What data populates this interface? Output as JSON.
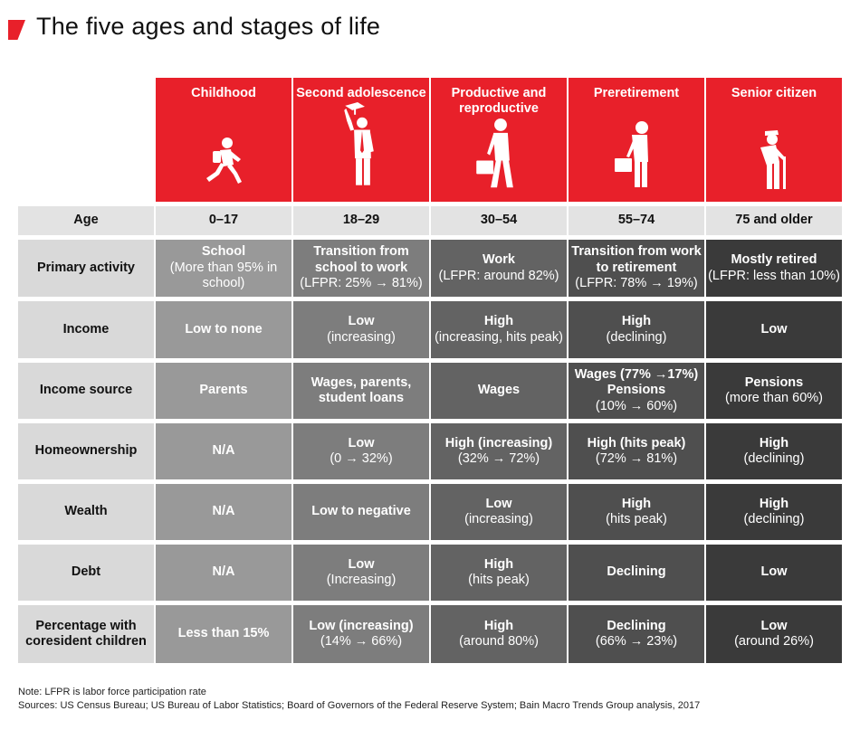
{
  "title": "The five ages and stages of life",
  "chart_data": {
    "type": "table",
    "columns": [
      {
        "label": "Childhood",
        "icon": "running-child-icon"
      },
      {
        "label": "Second adolescence",
        "icon": "graduate-icon"
      },
      {
        "label": "Productive and reproductive",
        "icon": "worker-briefcase-icon"
      },
      {
        "label": "Preretirement",
        "icon": "preretiree-briefcase-icon"
      },
      {
        "label": "Senior citizen",
        "icon": "senior-cane-icon"
      }
    ],
    "age_row": {
      "label": "Age",
      "values": [
        "0–17",
        "18–29",
        "30–54",
        "55–74",
        "75 and older"
      ]
    },
    "rows": [
      {
        "label": "Primary activity",
        "cells": [
          {
            "main": "School",
            "sub": "(More than 95% in school)"
          },
          {
            "main": "Transition from school to work",
            "sub": "(LFPR: 25% → 81%)"
          },
          {
            "main": "Work",
            "sub": "(LFPR: around 82%)"
          },
          {
            "main": "Transition from work to retirement",
            "sub": "(LFPR: 78% → 19%)"
          },
          {
            "main": "Mostly retired",
            "sub": "(LFPR: less than 10%)"
          }
        ]
      },
      {
        "label": "Income",
        "cells": [
          {
            "main": "Low to none",
            "sub": ""
          },
          {
            "main": "Low",
            "sub": "(increasing)"
          },
          {
            "main": "High",
            "sub": "(increasing, hits peak)"
          },
          {
            "main": "High",
            "sub": "(declining)"
          },
          {
            "main": "Low",
            "sub": ""
          }
        ]
      },
      {
        "label": "Income source",
        "cells": [
          {
            "main": "Parents",
            "sub": ""
          },
          {
            "main": "Wages, parents, student loans",
            "sub": ""
          },
          {
            "main": "Wages",
            "sub": ""
          },
          {
            "main": "Wages (77% →17%) Pensions",
            "sub": "(10% → 60%)"
          },
          {
            "main": "Pensions",
            "sub": "(more than 60%)"
          }
        ]
      },
      {
        "label": "Homeownership",
        "cells": [
          {
            "main": "N/A",
            "sub": ""
          },
          {
            "main": "Low",
            "sub": "(0 → 32%)"
          },
          {
            "main": "High (increasing)",
            "sub": "(32% → 72%)"
          },
          {
            "main": "High (hits peak)",
            "sub": "(72% → 81%)"
          },
          {
            "main": "High",
            "sub": "(declining)"
          }
        ]
      },
      {
        "label": "Wealth",
        "cells": [
          {
            "main": "N/A",
            "sub": ""
          },
          {
            "main": "Low to negative",
            "sub": ""
          },
          {
            "main": "Low",
            "sub": "(increasing)"
          },
          {
            "main": "High",
            "sub": "(hits peak)"
          },
          {
            "main": "High",
            "sub": "(declining)"
          }
        ]
      },
      {
        "label": "Debt",
        "cells": [
          {
            "main": "N/A",
            "sub": ""
          },
          {
            "main": "Low",
            "sub": "(Increasing)"
          },
          {
            "main": "High",
            "sub": "(hits peak)"
          },
          {
            "main": "Declining",
            "sub": ""
          },
          {
            "main": "Low",
            "sub": ""
          }
        ]
      },
      {
        "label": "Percentage with coresident children",
        "cells": [
          {
            "main": "Less than 15%",
            "sub": ""
          },
          {
            "main": "Low (increasing)",
            "sub": "(14% → 66%)"
          },
          {
            "main": "High",
            "sub": "(around 80%)"
          },
          {
            "main": "Declining",
            "sub": "(66% → 23%)"
          },
          {
            "main": "Low",
            "sub": "(around 26%)"
          }
        ]
      }
    ]
  },
  "note": "Note: LFPR is labor force participation rate",
  "sources": "Sources: US Census Bureau; US Bureau of Labor Statistics; Board of Governors of the Federal Reserve System; Bain Macro Trends Group analysis, 2017",
  "colors": {
    "header": "#e8202a",
    "age_row": "#e3e3e3",
    "label_col": "#d9d9d9",
    "col_shades": [
      "#999999",
      "#7d7d7d",
      "#636363",
      "#4f4f4f",
      "#3a3a3a"
    ]
  }
}
